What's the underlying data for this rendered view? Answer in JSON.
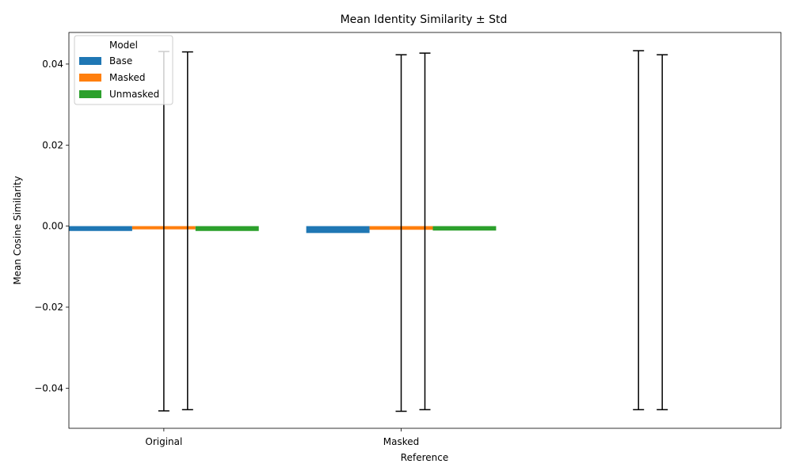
{
  "chart_data": {
    "type": "bar",
    "title": "Mean Identity Similarity ± Std",
    "xlabel": "Reference",
    "ylabel": "Mean Cosine Similarity",
    "categories": [
      "Original",
      "Masked"
    ],
    "ylim": [
      -0.0499,
      0.0478
    ],
    "yticks": [
      -0.04,
      -0.02,
      0.0,
      0.02,
      0.04
    ],
    "ytick_labels": [
      "−0.04",
      "−0.02",
      "0.00",
      "0.02",
      "0.04"
    ],
    "legend": {
      "title": "Model",
      "position": "top-left"
    },
    "series": [
      {
        "name": "Base",
        "color": "#1f77b4",
        "values": [
          -0.0012,
          -0.0017
        ]
      },
      {
        "name": "Masked",
        "color": "#ff7f0e",
        "values": [
          -0.0008,
          -0.0009
        ]
      },
      {
        "name": "Unmasked",
        "color": "#2ca02c",
        "values": [
          -0.0012,
          -0.0011
        ]
      }
    ],
    "error_bars": [
      {
        "x": 1.0,
        "lower": -0.0456,
        "upper": 0.0431
      },
      {
        "x": 1.1,
        "lower": -0.0453,
        "upper": 0.043
      },
      {
        "x": 2.0,
        "lower": -0.0457,
        "upper": 0.0423
      },
      {
        "x": 2.1,
        "lower": -0.0453,
        "upper": 0.0427
      },
      {
        "x": 3.0,
        "lower": -0.0453,
        "upper": 0.0433
      },
      {
        "x": 3.1,
        "lower": -0.0453,
        "upper": 0.0423
      }
    ],
    "xlim": [
      0.6,
      3.6
    ],
    "category_positions": [
      1.0,
      2.0
    ]
  }
}
